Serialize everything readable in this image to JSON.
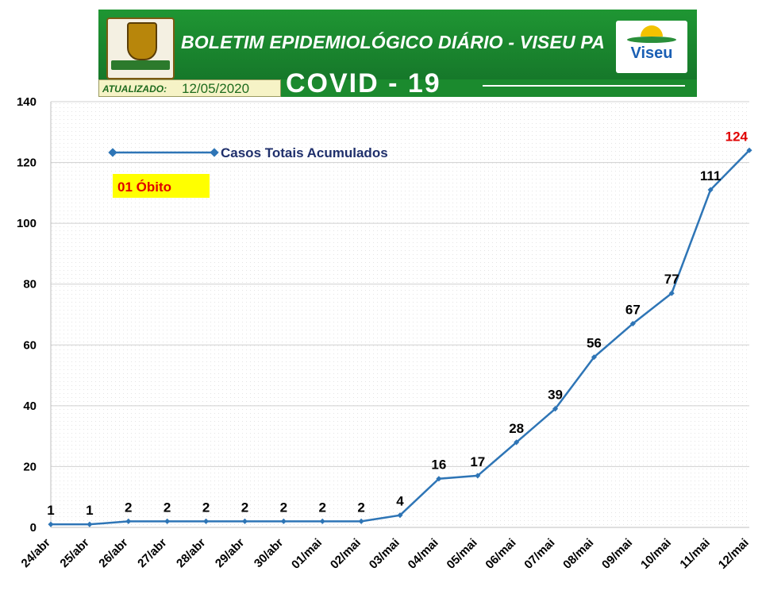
{
  "header": {
    "title": "BOLETIM EPIDEMIOLÓGICO DIÁRIO - VISEU PA",
    "updated_label": "ATUALIZADO:",
    "updated_date": "12/05/2020",
    "subtitle": "COVID - 19",
    "logo_text": "Viseu"
  },
  "annotation": {
    "deaths": "01 Óbito"
  },
  "colors": {
    "line": "#2e75b6",
    "marker": "#2e75b6",
    "last_label": "#e00000",
    "annotation_bg": "#ffff00",
    "annotation_text": "#e00000",
    "legend_text": "#1f2f6b",
    "banner": "#1b8a2e"
  },
  "chart_data": {
    "type": "line",
    "categories": [
      "24/abr",
      "25/abr",
      "26/abr",
      "27/abr",
      "28/abr",
      "29/abr",
      "30/abr",
      "01/mai",
      "02/mai",
      "03/mai",
      "04/mai",
      "05/mai",
      "06/mai",
      "07/mai",
      "08/mai",
      "09/mai",
      "10/mai",
      "11/mai",
      "12/mai"
    ],
    "series": [
      {
        "name": "Casos Totais Acumulados",
        "values": [
          1,
          1,
          2,
          2,
          2,
          2,
          2,
          2,
          2,
          4,
          16,
          17,
          28,
          39,
          56,
          67,
          77,
          111,
          124
        ]
      }
    ],
    "ylim": [
      0,
      140
    ],
    "yticks": [
      0,
      20,
      40,
      60,
      80,
      100,
      120,
      140
    ],
    "grid": true,
    "legend": "top-left",
    "data_labels": true
  }
}
